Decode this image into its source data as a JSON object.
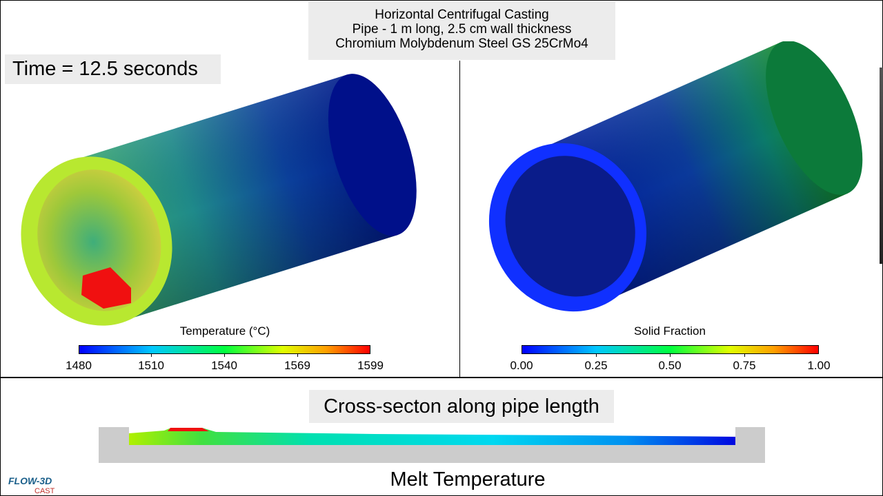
{
  "header": {
    "lines": [
      "Horizontal Centrifugal Casting",
      "Pipe - 1 m long, 2.5 cm wall thickness",
      "Chromium Molybdenum Steel GS 25CrMo4"
    ]
  },
  "time_label": "Time = 12.5 seconds",
  "left_view": {
    "colorbar_title": "Temperature (°C)",
    "ticks": [
      "1480",
      "1510",
      "1540",
      "1569",
      "1599"
    ]
  },
  "right_view": {
    "colorbar_title": "Solid Fraction",
    "ticks": [
      "0.00",
      "0.25",
      "0.50",
      "0.75",
      "1.00"
    ]
  },
  "cross_section": {
    "title": "Cross-secton along pipe length",
    "caption": "Melt Temperature"
  },
  "logo": {
    "name": "FLOW-3D",
    "sub": "CAST"
  },
  "colors": {
    "panel_bg": "#ececec",
    "trough": "#cccccc",
    "hot": "#ff0000",
    "cold": "#0000ff"
  }
}
